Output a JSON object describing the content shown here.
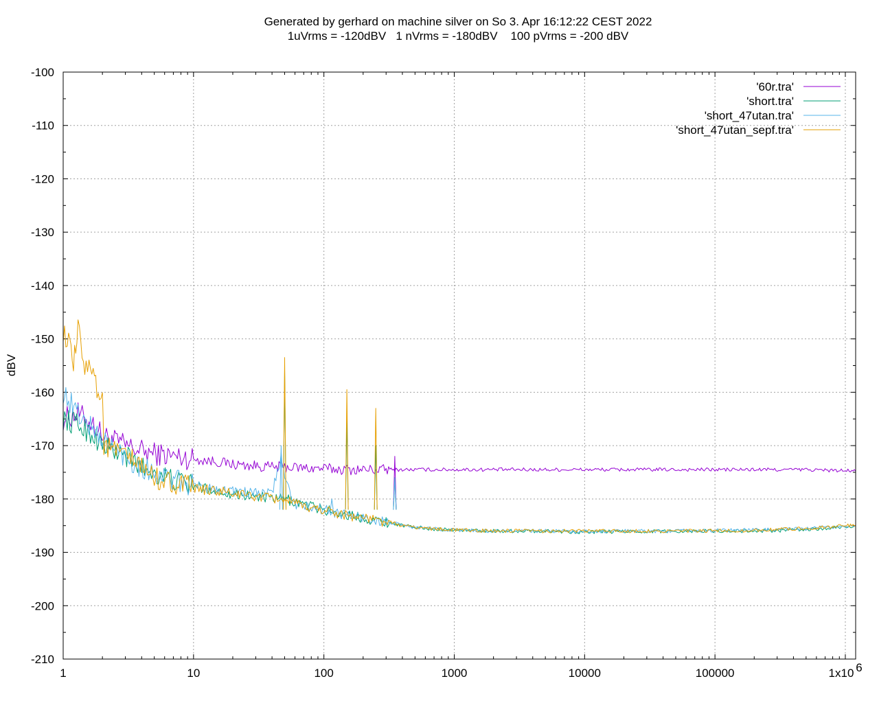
{
  "chart_data": {
    "type": "line",
    "title": "Generated by gerhard on machine silver on So 3. Apr 16:12:22 CEST 2022",
    "subtitle": "1uVrms = -120dBV   1 nVrms = -180dBV    100 pVrms = -200 dBV",
    "xlabel": "",
    "ylabel": "dBV",
    "x_scale": "log",
    "xlim": [
      1,
      1200000
    ],
    "ylim": [
      -210,
      -100
    ],
    "grid": true,
    "legend_position": "top-right",
    "x_ticks": [
      {
        "value": 1,
        "label": "1"
      },
      {
        "value": 10,
        "label": "10"
      },
      {
        "value": 100,
        "label": "100"
      },
      {
        "value": 1000,
        "label": "1000"
      },
      {
        "value": 10000,
        "label": "10000"
      },
      {
        "value": 100000,
        "label": "100000"
      },
      {
        "value": 1000000,
        "label": "1x10",
        "superscript": "6"
      }
    ],
    "y_ticks": [
      -100,
      -110,
      -120,
      -130,
      -140,
      -150,
      -160,
      -170,
      -180,
      -190,
      -200,
      -210
    ],
    "y_tick_labels": [
      "-100",
      "-110",
      "-120",
      "-130",
      "-140",
      "-150",
      "-160",
      "-170",
      "-180",
      "-190",
      "-200",
      "-210"
    ],
    "series": [
      {
        "name": "'60r.tra'",
        "color": "#9400d3",
        "x": [
          1,
          1.3,
          1.7,
          2,
          3,
          4,
          5,
          7,
          10,
          15,
          20,
          30,
          40,
          50,
          70,
          100,
          150,
          200,
          250,
          300,
          350,
          400,
          500,
          700,
          1000,
          2000,
          5000,
          10000,
          20000,
          50000,
          100000,
          200000,
          500000,
          1000000,
          1200000
        ],
        "y": [
          -165,
          -164,
          -166,
          -168,
          -170,
          -171,
          -171.5,
          -172,
          -172.5,
          -173,
          -173.5,
          -173.8,
          -174,
          -174,
          -174.2,
          -174.3,
          -174.5,
          -174.5,
          -174.5,
          -174.5,
          -174.5,
          -174.5,
          -174.5,
          -174.5,
          -174.5,
          -174.5,
          -174.5,
          -174.5,
          -174.5,
          -174.5,
          -174.5,
          -174.5,
          -174.5,
          -174.7,
          -174.8
        ],
        "peaks": [
          {
            "x": 350,
            "y": -172
          }
        ]
      },
      {
        "name": "'short.tra'",
        "color": "#009e73",
        "x": [
          1,
          1.3,
          1.7,
          2,
          3,
          4,
          5,
          7,
          10,
          15,
          20,
          30,
          40,
          50,
          60,
          70,
          100,
          150,
          200,
          250,
          300,
          350,
          400,
          500,
          700,
          1000,
          2000,
          3000,
          5000,
          10000,
          20000,
          50000,
          100000,
          200000,
          500000,
          1000000,
          1200000
        ],
        "y": [
          -165,
          -166,
          -168,
          -170,
          -172,
          -174,
          -175,
          -176.5,
          -177.5,
          -178.5,
          -179,
          -179.5,
          -180,
          -180,
          -180.5,
          -181,
          -182,
          -183,
          -183.5,
          -184,
          -184.3,
          -184.6,
          -185,
          -185.3,
          -185.6,
          -185.8,
          -186,
          -186,
          -186,
          -186.2,
          -186.1,
          -186,
          -186,
          -186,
          -185.8,
          -185.2,
          -185
        ],
        "peaks": [
          {
            "x": 50,
            "y": -156
          },
          {
            "x": 150,
            "y": -165
          },
          {
            "x": 250,
            "y": -170
          },
          {
            "x": 350,
            "y": -176
          }
        ]
      },
      {
        "name": "'short_47utan.tra'",
        "color": "#56b4e9",
        "x": [
          1,
          1.3,
          1.7,
          2,
          3,
          4,
          5,
          7,
          10,
          15,
          20,
          30,
          40,
          47,
          50,
          60,
          70,
          100,
          150,
          200,
          250,
          300,
          350,
          400,
          500,
          700,
          1000,
          2000,
          3000,
          5000,
          10000,
          20000,
          50000,
          100000,
          200000,
          500000,
          1000000,
          1200000
        ],
        "y": [
          -160,
          -164,
          -167,
          -169,
          -172,
          -174,
          -175,
          -176.5,
          -177.5,
          -178,
          -178.5,
          -179,
          -179,
          -172,
          -176,
          -181,
          -181.5,
          -182,
          -183,
          -183.5,
          -184,
          -184.3,
          -184.6,
          -185,
          -185.3,
          -185.6,
          -185.8,
          -186,
          -186,
          -186,
          -186.1,
          -186,
          -186,
          -185.9,
          -185.8,
          -185.6,
          -185.1,
          -184.9
        ],
        "peaks": [
          {
            "x": 47,
            "y": -170
          },
          {
            "x": 115,
            "y": -180
          },
          {
            "x": 350,
            "y": -176
          }
        ]
      },
      {
        "name": "'short_47utan_sepf.tra'",
        "color": "#e69f00",
        "x": [
          1,
          1.1,
          1.2,
          1.3,
          1.5,
          1.7,
          1.9,
          2,
          2.05,
          3,
          4,
          5,
          7,
          10,
          15,
          20,
          30,
          40,
          50,
          60,
          70,
          100,
          150,
          200,
          250,
          300,
          350,
          400,
          500,
          700,
          1000,
          2000,
          3000,
          5000,
          10000,
          20000,
          50000,
          100000,
          200000,
          500000,
          1000000,
          1200000
        ],
        "y": [
          -148.5,
          -151,
          -155,
          -148.5,
          -156,
          -154.5,
          -162,
          -160,
          -170,
          -172,
          -174,
          -176,
          -177,
          -178,
          -178.5,
          -179,
          -179.5,
          -180,
          -180,
          -181,
          -181.5,
          -182,
          -183,
          -183.5,
          -184,
          -184.3,
          -184.6,
          -185,
          -185.3,
          -185.6,
          -185.8,
          -186,
          -186,
          -186,
          -186,
          -186,
          -186,
          -186,
          -185.9,
          -185.5,
          -185,
          -184.9
        ],
        "peaks": [
          {
            "x": 50,
            "y": -153.5
          },
          {
            "x": 150,
            "y": -159.5
          },
          {
            "x": 250,
            "y": -163
          }
        ]
      }
    ]
  }
}
